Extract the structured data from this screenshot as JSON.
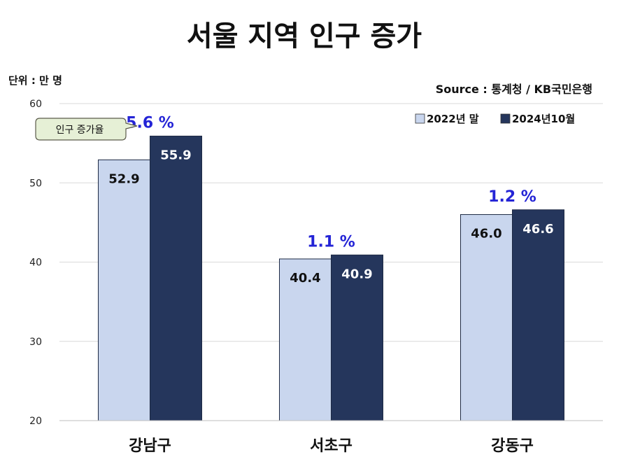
{
  "colors": {
    "series_2022": "#c9d6ee",
    "series_2024": "#25365c",
    "rate_text": "#2424d6",
    "callout_fill": "#e6f0d6",
    "callout_border": "#5a5a4a",
    "grid": "#d9d9d9"
  },
  "chart_data": {
    "type": "bar",
    "title": "서울 지역 인구 증가",
    "unit_label": "단위 : 만 명",
    "source": "Source : 통계청 / KB국민은행",
    "categories": [
      "강남구",
      "서초구",
      "강동구"
    ],
    "series": [
      {
        "name": "2022년 말",
        "values": [
          52.9,
          40.4,
          46.0
        ],
        "labels": [
          "52.9",
          "40.4",
          "46.0"
        ]
      },
      {
        "name": "2024년10월",
        "values": [
          55.9,
          40.9,
          46.6
        ],
        "labels": [
          "55.9",
          "40.9",
          "46.6"
        ]
      }
    ],
    "growth_rates": [
      "5.6 %",
      "1.1 %",
      "1.2 %"
    ],
    "callout": "인구 증가율",
    "ylim": [
      20,
      60
    ],
    "yticks": [
      "20",
      "30",
      "40",
      "50",
      "60"
    ],
    "grid": true,
    "legend_position": "top-right"
  }
}
